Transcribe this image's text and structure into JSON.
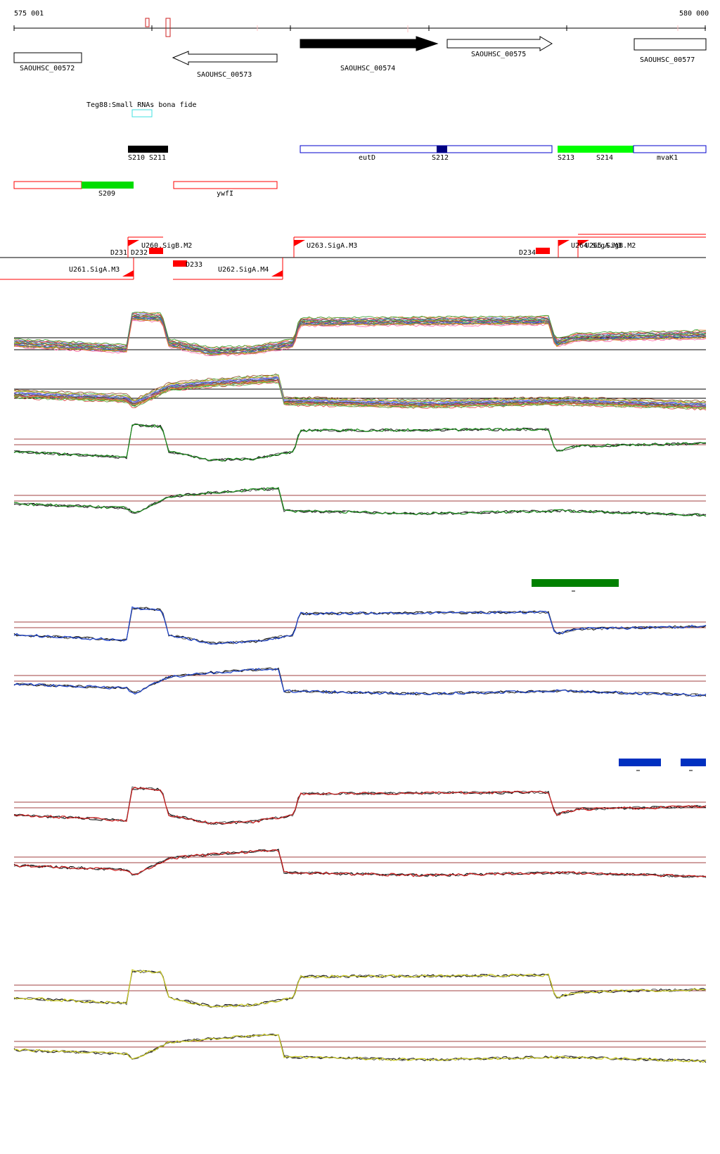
{
  "ruler": {
    "start_label": "575 001",
    "end_label": "580 000"
  },
  "genes": [
    {
      "label": "SAOUHSC_00572",
      "strand": "none",
      "fill": "#ffffff"
    },
    {
      "label": "SAOUHSC_00573",
      "strand": "reverse",
      "fill": "#ffffff"
    },
    {
      "label": "SAOUHSC_00574",
      "strand": "forward",
      "fill": "#000000"
    },
    {
      "label": "SAOUHSC_00575",
      "strand": "forward",
      "fill": "#ffffff"
    },
    {
      "label": "SAOUHSC_00577",
      "strand": "none",
      "fill": "#ffffff"
    }
  ],
  "small_rna": {
    "label": "Teg88:Small RNAs bona fide",
    "color": "#40e0e0"
  },
  "features_forward": [
    {
      "label": "S210",
      "color": "#000000"
    },
    {
      "label": "S211",
      "color": "#000000"
    },
    {
      "label": "eutD",
      "color": "#0000cc"
    },
    {
      "label": "S212",
      "color": "#000080"
    },
    {
      "label": "S213",
      "color": "#00ff00"
    },
    {
      "label": "S214",
      "color": "#00ff00"
    },
    {
      "label": "mvaK1",
      "color": "#0000cc"
    }
  ],
  "features_reverse": [
    {
      "label": "S209",
      "color": "#00dd00"
    },
    {
      "label": "ywfI",
      "color": "#ff0000"
    }
  ],
  "promoters": [
    {
      "label": "U260.SigB.M2"
    },
    {
      "label": "D231"
    },
    {
      "label": "D232"
    },
    {
      "label": "U263.SigA.M3"
    },
    {
      "label": "D234"
    },
    {
      "label": "U264.SigA.M3"
    },
    {
      "label": "U265.SigB.M2"
    },
    {
      "label": "U261.SigA.M3"
    },
    {
      "label": "D233"
    },
    {
      "label": "U262.SigA.M4"
    }
  ],
  "track_colors": {
    "panel_green": "#1a8c1a",
    "panel_blue": "#1a40cc",
    "panel_red": "#cc1a1a",
    "panel_yellow": "#cccc20",
    "baseline": "#a04040",
    "bar_green": "#008000",
    "bar_blue": "#0030c0"
  }
}
